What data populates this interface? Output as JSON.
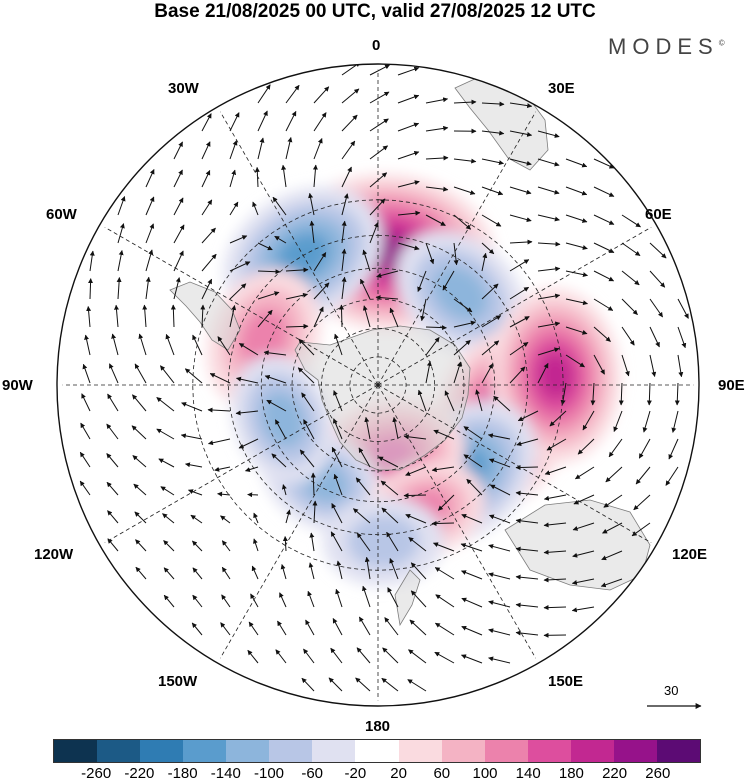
{
  "title": "Base 21/08/2025 00 UTC, valid 27/08/2025 12 UTC",
  "brand": "MODES",
  "brand_mark": "©",
  "longitude_labels": {
    "lon_0": "0",
    "lon_30e": "30E",
    "lon_60e": "60E",
    "lon_90e": "90E",
    "lon_120e": "120E",
    "lon_150e": "150E",
    "lon_180": "180",
    "lon_150w": "150W",
    "lon_120w": "120W",
    "lon_90w": "90W",
    "lon_60w": "60W",
    "lon_30w": "30W"
  },
  "reference_vector": "30",
  "colorbar": {
    "colors": [
      "#0d3350",
      "#1c5a86",
      "#2f7cb3",
      "#5a9ccd",
      "#8db5dc",
      "#b8c6e6",
      "#e0e1f1",
      "#ffffff",
      "#fadbe0",
      "#f4b3c4",
      "#ec82ac",
      "#dd4e9e",
      "#c22891",
      "#96128a",
      "#5c0b74"
    ],
    "ticks": [
      "-260",
      "-220",
      "-180",
      "-140",
      "-100",
      "-60",
      "-20",
      "20",
      "60",
      "100",
      "140",
      "180",
      "220",
      "260"
    ]
  },
  "map": {
    "projection": "south polar stereographic",
    "anomaly_centers": [
      {
        "lon": 5,
        "lat": -45,
        "value": 240
      },
      {
        "lon": -30,
        "lat": -40,
        "value": -170
      },
      {
        "lon": -68,
        "lat": -48,
        "value": 130
      },
      {
        "lon": 42,
        "lat": -48,
        "value": -130
      },
      {
        "lon": 105,
        "lat": -46,
        "value": 190
      },
      {
        "lon": 87,
        "lat": -32,
        "value": 180
      },
      {
        "lon": 135,
        "lat": -48,
        "value": -160
      },
      {
        "lon": 170,
        "lat": -65,
        "value": 140
      },
      {
        "lon": -150,
        "lat": -52,
        "value": -100
      },
      {
        "lon": -110,
        "lat": -55,
        "value": -110
      },
      {
        "lon": 160,
        "lat": -45,
        "value": 100
      },
      {
        "lon": 178,
        "lat": -38,
        "value": -90
      }
    ]
  }
}
